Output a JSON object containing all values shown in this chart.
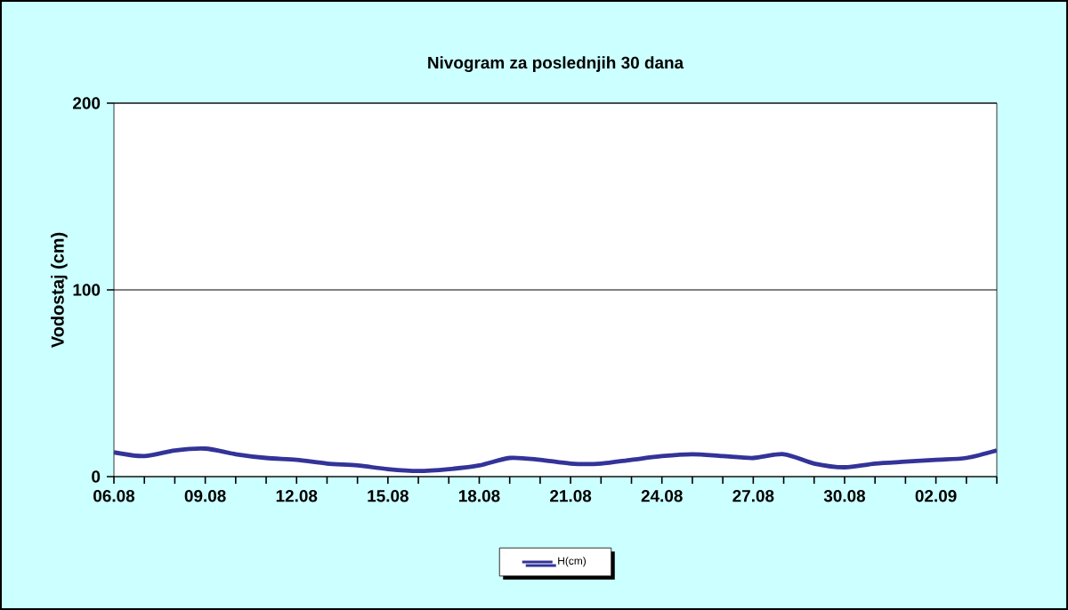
{
  "chart_data": {
    "type": "line",
    "title": "Nivogram za poslednjih 30 dana",
    "ylabel": "Vodostaj (cm)",
    "categories": [
      "06.08",
      null,
      null,
      "09.08",
      null,
      null,
      "12.08",
      null,
      null,
      "15.08",
      null,
      null,
      "18.08",
      null,
      null,
      "21.08",
      null,
      null,
      "24.08",
      null,
      null,
      "27.08",
      null,
      null,
      "30.08",
      null,
      null,
      "02.09",
      null,
      null
    ],
    "series": [
      {
        "name": "H(cm)",
        "color": "#333399",
        "values": [
          13,
          11,
          14,
          15,
          12,
          10,
          9,
          7,
          6,
          4,
          3,
          4,
          6,
          10,
          9,
          7,
          7,
          9,
          11,
          12,
          11,
          10,
          12,
          7,
          5,
          7,
          8,
          9,
          10,
          14
        ]
      }
    ],
    "ylim": [
      0,
      200
    ],
    "yticks": [
      0,
      100,
      200
    ],
    "grid": "y",
    "legend": "bottom",
    "marker": "none",
    "line_style": "solid"
  }
}
